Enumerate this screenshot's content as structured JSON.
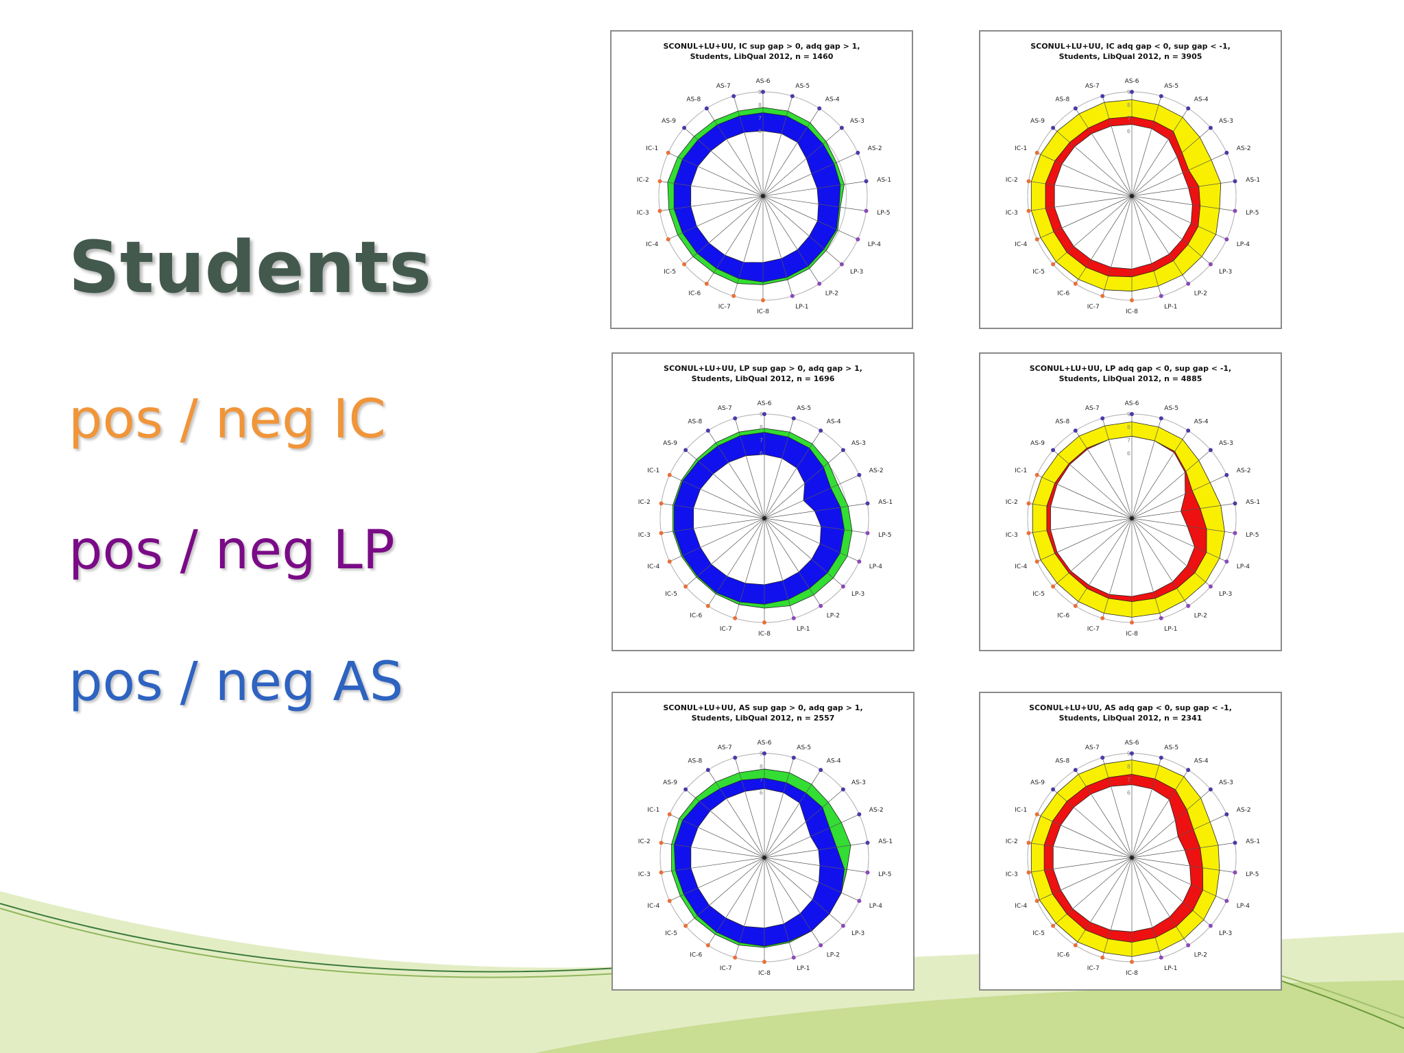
{
  "slide": {
    "title": "Students",
    "legend": [
      {
        "text": "pos / neg IC",
        "color": "#f0953a"
      },
      {
        "text": "pos / neg LP",
        "color": "#7a0b86"
      },
      {
        "text": "pos / neg AS",
        "color": "#2e63c0"
      }
    ],
    "background_colors": {
      "wave_light": "#dde9b8",
      "wave_mid": "#c8dc8e",
      "wave_line": "#3b7a3a"
    }
  },
  "chart_data": [
    {
      "type": "radar",
      "title_line1": "SCONUL+LU+UU, IC sup gap > 0, adq gap > 1,",
      "title_line2": "Students, LibQual 2012, n = 1460",
      "axes": [
        "AS-6",
        "AS-5",
        "AS-4",
        "AS-3",
        "AS-2",
        "AS-1",
        "LP-5",
        "LP-4",
        "LP-3",
        "LP-2",
        "LP-1",
        "IC-8",
        "IC-7",
        "IC-6",
        "IC-5",
        "IC-4",
        "IC-3",
        "IC-2",
        "IC-1",
        "AS-9",
        "AS-8",
        "AS-7"
      ],
      "axis_colors": {
        "AS": "#4a3aa8",
        "LP": "#8a4ab8",
        "IC": "#e8703a"
      },
      "rlim": [
        1,
        9
      ],
      "ring_labels": [
        "9",
        "8",
        "7",
        "6"
      ],
      "series": [
        {
          "role": "desired",
          "values": [
            7.8,
            7.8,
            7.7,
            7.4,
            7.2,
            7.3,
            7.0,
            7.3,
            7.4,
            7.6,
            7.7,
            7.8,
            8.0,
            8.0,
            8.1,
            8.2,
            8.3,
            8.4,
            8.2,
            8.0,
            7.9,
            7.8
          ]
        },
        {
          "role": "perceived",
          "values": [
            7.4,
            7.4,
            7.3,
            7.1,
            7.0,
            7.0,
            6.9,
            7.2,
            7.2,
            7.4,
            7.5,
            7.6,
            7.6,
            7.6,
            7.7,
            7.8,
            7.9,
            7.9,
            7.8,
            7.6,
            7.5,
            7.4
          ]
        },
        {
          "role": "minimum",
          "values": [
            6.0,
            6.0,
            5.9,
            5.4,
            5.1,
            5.2,
            5.3,
            5.6,
            5.7,
            5.9,
            6.0,
            6.1,
            6.3,
            6.4,
            6.5,
            6.6,
            6.6,
            6.6,
            6.5,
            6.3,
            6.2,
            6.1
          ]
        }
      ],
      "fill_colors": {
        "upper": "#33dd33",
        "lower": "#1111ee"
      }
    },
    {
      "type": "radar",
      "title_line1": "SCONUL+LU+UU, IC adq gap < 0, sup gap < -1,",
      "title_line2": "Students, LibQual 2012, n = 3905",
      "axes": [
        "AS-6",
        "AS-5",
        "AS-4",
        "AS-3",
        "AS-2",
        "AS-1",
        "LP-5",
        "LP-4",
        "LP-3",
        "LP-2",
        "LP-1",
        "IC-8",
        "IC-7",
        "IC-6",
        "IC-5",
        "IC-4",
        "IC-3",
        "IC-2",
        "IC-1",
        "AS-9",
        "AS-8",
        "AS-7"
      ],
      "axis_colors": {
        "AS": "#4a3aa8",
        "LP": "#8a4ab8",
        "IC": "#e8703a"
      },
      "rlim": [
        1,
        9
      ],
      "ring_labels": [
        "9",
        "8",
        "7",
        "6"
      ],
      "series": [
        {
          "role": "desired",
          "values": [
            8.4,
            8.3,
            8.2,
            7.9,
            7.7,
            7.9,
            7.8,
            8.1,
            8.1,
            8.2,
            8.2,
            8.3,
            8.5,
            8.6,
            8.7,
            8.7,
            8.8,
            8.8,
            8.7,
            8.6,
            8.5,
            8.5
          ]
        },
        {
          "role": "minimum",
          "values": [
            7.1,
            7.0,
            6.9,
            6.1,
            5.8,
            6.2,
            6.3,
            6.6,
            6.7,
            6.9,
            7.0,
            7.2,
            7.4,
            7.5,
            7.6,
            7.6,
            7.7,
            7.7,
            7.5,
            7.3,
            7.2,
            7.2
          ]
        },
        {
          "role": "perceived",
          "values": [
            6.5,
            6.4,
            6.2,
            5.6,
            5.3,
            5.4,
            5.7,
            6.0,
            6.1,
            6.3,
            6.4,
            6.6,
            6.7,
            6.8,
            6.9,
            6.9,
            7.0,
            7.0,
            6.9,
            6.8,
            6.7,
            6.6
          ]
        }
      ],
      "fill_colors": {
        "upper": "#f8f000",
        "lower": "#ee1111"
      }
    },
    {
      "type": "radar",
      "title_line1": "SCONUL+LU+UU, LP sup gap > 0, adq gap > 1,",
      "title_line2": "Students, LibQual 2012, n = 1696",
      "axes": [
        "AS-6",
        "AS-5",
        "AS-4",
        "AS-3",
        "AS-2",
        "AS-1",
        "LP-5",
        "LP-4",
        "LP-3",
        "LP-2",
        "LP-1",
        "IC-8",
        "IC-7",
        "IC-6",
        "IC-5",
        "IC-4",
        "IC-3",
        "IC-2",
        "IC-1",
        "AS-9",
        "AS-8",
        "AS-7"
      ],
      "axis_colors": {
        "AS": "#4a3aa8",
        "LP": "#8a4ab8",
        "IC": "#e8703a"
      },
      "rlim": [
        1,
        9
      ],
      "ring_labels": [
        "9",
        "8",
        "7",
        "6"
      ],
      "series": [
        {
          "role": "desired",
          "values": [
            7.9,
            7.9,
            7.8,
            7.5,
            7.2,
            7.5,
            7.8,
            8.0,
            8.0,
            8.0,
            8.0,
            7.9,
            7.9,
            7.9,
            7.9,
            8.0,
            8.1,
            8.1,
            8.0,
            7.9,
            7.9,
            7.9
          ]
        },
        {
          "role": "perceived",
          "values": [
            7.6,
            7.5,
            7.4,
            7.0,
            6.6,
            6.9,
            7.2,
            7.4,
            7.4,
            7.4,
            7.5,
            7.6,
            7.7,
            7.8,
            7.8,
            7.9,
            8.0,
            8.0,
            7.9,
            7.7,
            7.6,
            7.6
          ]
        },
        {
          "role": "minimum",
          "values": [
            5.9,
            5.8,
            5.6,
            5.1,
            4.3,
            4.9,
            5.4,
            5.7,
            5.8,
            5.9,
            6.0,
            6.1,
            6.2,
            6.3,
            6.4,
            6.4,
            6.5,
            6.5,
            6.4,
            6.2,
            6.1,
            6.0
          ]
        }
      ],
      "fill_colors": {
        "upper": "#33dd33",
        "lower": "#1111ee"
      }
    },
    {
      "type": "radar",
      "title_line1": "SCONUL+LU+UU, LP adq gap < 0, sup gap < -1,",
      "title_line2": "Students, LibQual 2012, n = 4885",
      "axes": [
        "AS-6",
        "AS-5",
        "AS-4",
        "AS-3",
        "AS-2",
        "AS-1",
        "LP-5",
        "LP-4",
        "LP-3",
        "LP-2",
        "LP-1",
        "IC-8",
        "IC-7",
        "IC-6",
        "IC-5",
        "IC-4",
        "IC-3",
        "IC-2",
        "IC-1",
        "AS-9",
        "AS-8",
        "AS-7"
      ],
      "axis_colors": {
        "AS": "#4a3aa8",
        "LP": "#8a4ab8",
        "IC": "#e8703a"
      },
      "rlim": [
        1,
        9
      ],
      "ring_labels": [
        "9",
        "8",
        "7",
        "6"
      ],
      "series": [
        {
          "role": "desired",
          "values": [
            8.4,
            8.3,
            8.2,
            7.8,
            7.6,
            7.9,
            8.2,
            8.4,
            8.5,
            8.5,
            8.6,
            8.6,
            8.6,
            8.6,
            8.6,
            8.7,
            8.7,
            8.7,
            8.6,
            8.5,
            8.5,
            8.4
          ]
        },
        {
          "role": "minimum",
          "values": [
            7.3,
            7.2,
            7.1,
            6.5,
            6.1,
            6.3,
            6.8,
            7.3,
            7.4,
            7.4,
            7.4,
            7.4,
            7.4,
            7.4,
            7.4,
            7.5,
            7.6,
            7.6,
            7.5,
            7.4,
            7.4,
            7.3
          ]
        },
        {
          "role": "perceived",
          "values": [
            7.3,
            7.2,
            7.0,
            6.4,
            5.5,
            4.8,
            5.3,
            6.3,
            6.6,
            6.8,
            6.9,
            7.0,
            7.1,
            7.1,
            7.2,
            7.3,
            7.3,
            7.3,
            7.3,
            7.3,
            7.3,
            7.3
          ]
        }
      ],
      "fill_colors": {
        "upper": "#f8f000",
        "lower": "#ee1111"
      }
    },
    {
      "type": "radar",
      "title_line1": "SCONUL+LU+UU, AS sup gap > 0, adq gap > 1,",
      "title_line2": "Students, LibQual 2012, n = 2557",
      "axes": [
        "AS-6",
        "AS-5",
        "AS-4",
        "AS-3",
        "AS-2",
        "AS-1",
        "LP-5",
        "LP-4",
        "LP-3",
        "LP-2",
        "LP-1",
        "IC-8",
        "IC-7",
        "IC-6",
        "IC-5",
        "IC-4",
        "IC-3",
        "IC-2",
        "IC-1",
        "AS-9",
        "AS-8",
        "AS-7"
      ],
      "axis_colors": {
        "AS": "#4a3aa8",
        "LP": "#8a4ab8",
        "IC": "#e8703a"
      },
      "rlim": [
        1,
        9
      ],
      "ring_labels": [
        "9",
        "8",
        "7",
        "6"
      ],
      "series": [
        {
          "role": "desired",
          "values": [
            7.8,
            7.8,
            7.7,
            7.5,
            7.5,
            7.7,
            7.4,
            7.5,
            7.6,
            7.7,
            7.8,
            7.9,
            8.0,
            8.0,
            8.1,
            8.1,
            8.2,
            8.2,
            8.2,
            8.0,
            7.9,
            7.8
          ]
        },
        {
          "role": "perceived",
          "values": [
            7.1,
            7.0,
            6.9,
            6.9,
            6.5,
            6.6,
            7.2,
            7.5,
            7.6,
            7.7,
            7.7,
            7.8,
            7.8,
            7.8,
            7.8,
            7.8,
            7.9,
            8.0,
            7.9,
            7.6,
            7.3,
            7.2
          ]
        },
        {
          "role": "minimum",
          "values": [
            6.3,
            6.2,
            6.0,
            5.2,
            4.9,
            5.2,
            5.3,
            5.6,
            5.9,
            6.1,
            6.3,
            6.4,
            6.5,
            6.5,
            6.6,
            6.6,
            6.7,
            6.7,
            6.6,
            6.5,
            6.4,
            6.3
          ]
        }
      ],
      "fill_colors": {
        "upper": "#33dd33",
        "lower": "#1111ee"
      }
    },
    {
      "type": "radar",
      "title_line1": "SCONUL+LU+UU, AS adq gap < 0, sup gap < -1,",
      "title_line2": "Students, LibQual 2012, n = 2341",
      "axes": [
        "AS-6",
        "AS-5",
        "AS-4",
        "AS-3",
        "AS-2",
        "AS-1",
        "LP-5",
        "LP-4",
        "LP-3",
        "LP-2",
        "LP-1",
        "IC-8",
        "IC-7",
        "IC-6",
        "IC-5",
        "IC-4",
        "IC-3",
        "IC-2",
        "IC-1",
        "AS-9",
        "AS-8",
        "AS-7"
      ],
      "axis_colors": {
        "AS": "#4a3aa8",
        "LP": "#8a4ab8",
        "IC": "#e8703a"
      },
      "rlim": [
        1,
        9
      ],
      "ring_labels": [
        "9",
        "8",
        "7",
        "6"
      ],
      "series": [
        {
          "role": "desired",
          "values": [
            8.5,
            8.4,
            8.4,
            8.0,
            7.6,
            7.7,
            7.8,
            8.1,
            8.3,
            8.4,
            8.5,
            8.6,
            8.6,
            8.7,
            8.7,
            8.8,
            8.8,
            8.8,
            8.7,
            8.6,
            8.6,
            8.5
          ]
        },
        {
          "role": "minimum",
          "values": [
            7.4,
            7.3,
            7.2,
            6.6,
            6.2,
            6.3,
            6.5,
            7.0,
            7.2,
            7.3,
            7.4,
            7.5,
            7.5,
            7.6,
            7.6,
            7.7,
            7.8,
            7.8,
            7.7,
            7.6,
            7.5,
            7.4
          ]
        },
        {
          "role": "perceived",
          "values": [
            6.6,
            6.5,
            6.3,
            5.4,
            4.9,
            5.1,
            5.5,
            6.0,
            6.2,
            6.4,
            6.6,
            6.7,
            6.8,
            6.9,
            7.0,
            7.0,
            7.1,
            7.1,
            7.0,
            6.9,
            6.8,
            6.7
          ]
        }
      ],
      "fill_colors": {
        "upper": "#f8f000",
        "lower": "#ee1111"
      }
    }
  ]
}
